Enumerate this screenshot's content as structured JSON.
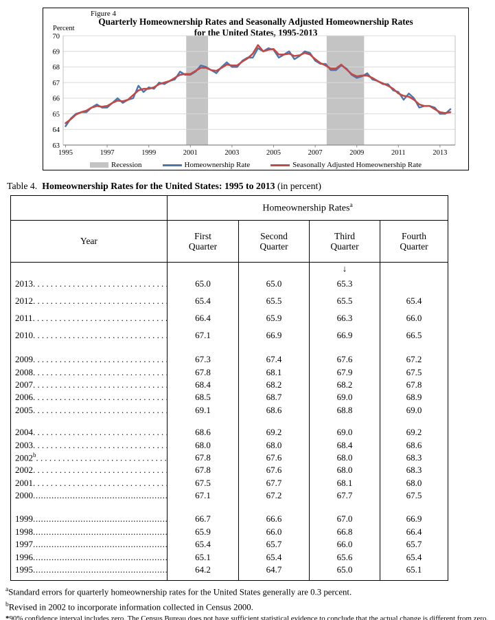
{
  "figure": {
    "label": "Figure 4",
    "title_line1": "Quarterly Homeownership Rates and Seasonally Adjusted Homeownership Rates",
    "title_line2": "for the United States, 1995-2013",
    "y_axis_unit": "Percent",
    "legend": [
      {
        "label": "Recession",
        "type": "band",
        "color": "#c4c4c4"
      },
      {
        "label": "Homeownership Rate",
        "type": "line",
        "color": "#4a76ac"
      },
      {
        "label": "Seasonally Adjusted Homeownership Rate",
        "type": "line",
        "color": "#bf4a47"
      }
    ]
  },
  "chart_data": {
    "type": "line",
    "title": "Quarterly Homeownership Rates and Seasonally Adjusted Homeownership Rates for the United States, 1995-2013",
    "xlabel": "",
    "ylabel": "Percent",
    "x_unit": "quarter",
    "x_start": "1995 Q1",
    "x_end": "2013 Q3",
    "ylim": [
      63,
      70
    ],
    "grid": true,
    "legend_position": "bottom",
    "y_ticks": [
      63,
      64,
      65,
      66,
      67,
      68,
      69,
      70
    ],
    "x_tick_years": [
      1995,
      1997,
      1999,
      2001,
      2003,
      2005,
      2007,
      2009,
      2011,
      2013
    ],
    "recession_bands": [
      [
        2000.8,
        2001.85
      ],
      [
        2007.55,
        2009.35
      ]
    ],
    "recession_color": "#c4c4c4",
    "series": [
      {
        "name": "Homeownership Rate",
        "color": "#4a76ac",
        "values": [
          64.2,
          64.7,
          65.0,
          65.1,
          65.1,
          65.4,
          65.6,
          65.4,
          65.4,
          65.7,
          66.0,
          65.7,
          65.9,
          66.0,
          66.8,
          66.4,
          66.7,
          66.6,
          67.0,
          66.9,
          67.1,
          67.2,
          67.7,
          67.5,
          67.5,
          67.7,
          68.1,
          68.0,
          67.8,
          67.6,
          68.0,
          68.3,
          68.0,
          68.0,
          68.4,
          68.6,
          68.6,
          69.2,
          69.0,
          69.2,
          69.1,
          68.6,
          68.8,
          69.0,
          68.5,
          68.7,
          69.0,
          68.9,
          68.4,
          68.2,
          68.2,
          67.8,
          67.8,
          68.1,
          67.9,
          67.5,
          67.3,
          67.4,
          67.6,
          67.2,
          67.1,
          66.9,
          66.9,
          66.5,
          66.4,
          65.9,
          66.3,
          66.0,
          65.4,
          65.5,
          65.5,
          65.4,
          65.0,
          65.0,
          65.3
        ]
      },
      {
        "name": "Seasonally Adjusted Homeownership Rate",
        "color": "#bf4a47",
        "values": [
          64.4,
          64.65,
          64.95,
          65.1,
          65.2,
          65.4,
          65.5,
          65.45,
          65.5,
          65.7,
          65.85,
          65.8,
          65.9,
          66.2,
          66.5,
          66.6,
          66.6,
          66.7,
          66.9,
          67.0,
          67.1,
          67.3,
          67.5,
          67.55,
          67.55,
          67.75,
          67.95,
          67.95,
          67.8,
          67.75,
          67.95,
          68.15,
          68.1,
          68.1,
          68.35,
          68.55,
          68.85,
          69.4,
          69.0,
          69.1,
          69.15,
          68.8,
          68.8,
          68.85,
          68.7,
          68.75,
          68.9,
          68.8,
          68.5,
          68.25,
          68.1,
          67.9,
          67.9,
          68.15,
          67.85,
          67.55,
          67.4,
          67.45,
          67.45,
          67.3,
          67.1,
          66.95,
          66.8,
          66.6,
          66.3,
          66.15,
          66.1,
          65.9,
          65.6,
          65.5,
          65.5,
          65.3,
          65.1,
          65.05,
          65.1
        ]
      }
    ]
  },
  "table": {
    "caption_prefix": "Table 4.",
    "caption_title": "Homeownership Rates for the United States: 1995 to 2013",
    "caption_suffix": "(in percent)",
    "group_header": "Homeownership Rates",
    "group_header_sup": "a",
    "row_header": "Year",
    "columns": [
      {
        "line1": "First",
        "line2": "Quarter"
      },
      {
        "line1": "Second",
        "line2": "Quarter"
      },
      {
        "line1": "Third",
        "line2": "Quarter"
      },
      {
        "line1": "Fourth",
        "line2": "Quarter"
      }
    ],
    "arrow": "↓",
    "leaders": {
      "spaced": "............................................................",
      "fine": ".............................................................................................................."
    },
    "groups": [
      {
        "rows": [
          {
            "year": "2013",
            "sup": "",
            "leader": "spaced",
            "q": [
              "65.0",
              "65.0",
              "65.3",
              ""
            ]
          },
          {
            "year": "2012",
            "sup": "",
            "leader": "spaced",
            "q": [
              "65.4",
              "65.5",
              "65.5",
              "65.4"
            ]
          },
          {
            "year": "2011",
            "sup": "",
            "leader": "spaced",
            "q": [
              "66.4",
              "65.9",
              "66.3",
              "66.0"
            ]
          },
          {
            "year": "2010",
            "sup": "",
            "leader": "spaced",
            "q": [
              "67.1",
              "66.9",
              "66.9",
              "66.5"
            ]
          }
        ]
      },
      {
        "rows": [
          {
            "year": "2009",
            "sup": "",
            "leader": "spaced",
            "q": [
              "67.3",
              "67.4",
              "67.6",
              "67.2"
            ]
          },
          {
            "year": "2008",
            "sup": "",
            "leader": "spaced",
            "q": [
              "67.8",
              "68.1",
              "67.9",
              "67.5"
            ]
          },
          {
            "year": "2007",
            "sup": "",
            "leader": "spaced",
            "q": [
              "68.4",
              "68.2",
              "68.2",
              "67.8"
            ]
          },
          {
            "year": "2006",
            "sup": "",
            "leader": "spaced",
            "q": [
              "68.5",
              "68.7",
              "69.0",
              "68.9"
            ]
          },
          {
            "year": "2005",
            "sup": "",
            "leader": "spaced",
            "q": [
              "69.1",
              "68.6",
              "68.8",
              "69.0"
            ]
          }
        ]
      },
      {
        "rows": [
          {
            "year": "2004",
            "sup": "",
            "leader": "spaced",
            "q": [
              "68.6",
              "69.2",
              "69.0",
              "69.2"
            ]
          },
          {
            "year": "2003",
            "sup": "",
            "leader": "spaced",
            "q": [
              "68.0",
              "68.0",
              "68.4",
              "68.6"
            ]
          },
          {
            "year": "2002",
            "sup": "b",
            "leader": "spaced",
            "q": [
              "67.8",
              "67.6",
              "68.0",
              "68.3"
            ]
          },
          {
            "year": "2002",
            "sup": "",
            "leader": "spaced",
            "q": [
              "67.8",
              "67.6",
              "68.0",
              "68.3"
            ]
          },
          {
            "year": "2001",
            "sup": "",
            "leader": "spaced",
            "q": [
              "67.5",
              "67.7",
              "68.1",
              "68.0"
            ]
          },
          {
            "year": "2000",
            "sup": "",
            "leader": "fine",
            "q": [
              "67.1",
              "67.2",
              "67.7",
              "67.5"
            ]
          }
        ]
      },
      {
        "rows": [
          {
            "year": "1999",
            "sup": "",
            "leader": "fine",
            "q": [
              "66.7",
              "66.6",
              "67.0",
              "66.9"
            ]
          },
          {
            "year": "1998",
            "sup": "",
            "leader": "fine",
            "q": [
              "65.9",
              "66.0",
              "66.8",
              "66.4"
            ]
          },
          {
            "year": "1997",
            "sup": "",
            "leader": "fine",
            "q": [
              "65.4",
              "65.7",
              "66.0",
              "65.7"
            ]
          },
          {
            "year": "1996",
            "sup": "",
            "leader": "fine",
            "q": [
              "65.1",
              "65.4",
              "65.6",
              "65.4"
            ]
          },
          {
            "year": "1995",
            "sup": "",
            "leader": "fine",
            "q": [
              "64.2",
              "64.7",
              "65.0",
              "65.1"
            ]
          }
        ]
      }
    ]
  },
  "footnotes": [
    {
      "marker": "a",
      "sup": true,
      "small": false,
      "text": "Standard errors for quarterly homeownership rates for the United States generally are 0.3 percent."
    },
    {
      "marker": "b",
      "sup": true,
      "small": false,
      "text": "Revised in 2002 to incorporate information collected in Census 2000."
    },
    {
      "marker": "*",
      "sup": false,
      "small": true,
      "text": "90% confidence interval includes zero. The Census Bureau does not have sufficient statistical evidence to conclude that the actual change is different from zero."
    }
  ]
}
